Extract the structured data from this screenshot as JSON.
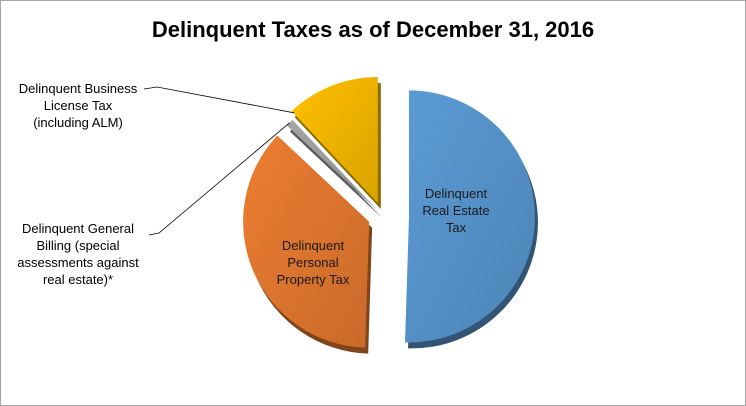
{
  "chart_data": {
    "type": "pie",
    "title": "Delinquent Taxes as of December 31, 2016",
    "slices": [
      {
        "label": "Delinquent Real Estate Tax",
        "value": 50.5,
        "color": "#5b9bd5"
      },
      {
        "label": "Delinquent Personal Property Tax",
        "value": 36.5,
        "color": "#ed7d31"
      },
      {
        "label": "Delinquent General Billing (special assessments against real estate)*",
        "value": 1.0,
        "color": "#a5a5a5"
      },
      {
        "label": "Delinquent Business License Tax (including ALM)",
        "value": 12.0,
        "color": "#ffc000"
      }
    ],
    "labels": {
      "real_estate": [
        "Delinquent",
        "Real Estate",
        "Tax"
      ],
      "personal_property": [
        "Delinquent",
        "Personal",
        "Property Tax"
      ],
      "general_billing": [
        "Delinquent General",
        "Billing (special",
        "assessments against",
        "real estate)*"
      ],
      "business_license": [
        "Delinquent Business",
        "License Tax",
        "(including ALM)"
      ]
    },
    "legend": "none",
    "style": "exploded 3D pie"
  }
}
